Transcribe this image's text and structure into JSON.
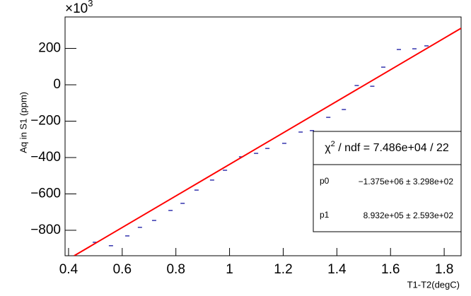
{
  "chart_data": {
    "type": "scatter",
    "xlabel": "T1-T2(degC)",
    "ylabel": "Aq in S1 (ppm)",
    "y_multiplier": {
      "base": "×10",
      "exponent": "3"
    },
    "xlim": [
      0.387,
      1.863
    ],
    "ylim": [
      -940,
      373
    ],
    "xticks": [
      0.4,
      0.6,
      0.8,
      1,
      1.2,
      1.4,
      1.6,
      1.8
    ],
    "yticks": [
      {
        "value": -800,
        "label": "−800"
      },
      {
        "value": -600,
        "label": "−600"
      },
      {
        "value": -400,
        "label": "−400"
      },
      {
        "value": -200,
        "label": "−200"
      },
      0,
      200
    ],
    "series": [
      {
        "color": "#000099",
        "x": [
          0.498,
          0.558,
          0.619,
          0.666,
          0.719,
          0.78,
          0.825,
          0.877,
          0.935,
          0.983,
          1.043,
          1.099,
          1.141,
          1.204,
          1.265,
          1.307,
          1.368,
          1.426,
          1.474,
          1.532,
          1.573,
          1.631,
          1.689,
          1.734
        ],
        "values": [
          -866,
          -885,
          -831,
          -784,
          -746,
          -691,
          -652,
          -579,
          -524,
          -470,
          -396,
          -377,
          -350,
          -322,
          -260,
          -252,
          -179,
          -136,
          -4,
          -8,
          97,
          194,
          198,
          214
        ]
      },
      {
        "color": "#ff0000",
        "x": [
          0.421,
          1.863
        ],
        "values": [
          -940,
          311
        ]
      }
    ],
    "stats": {
      "chi2_symbol": "χ",
      "chi2_exp": "2",
      "chi2_text": " / ndf = 7.486e+04 / 22",
      "rows": [
        [
          "p0",
          "−1.375e+06 ± 3.298e+02"
        ],
        [
          "p1",
          "8.932e+05 ± 2.593e+02"
        ]
      ]
    }
  }
}
